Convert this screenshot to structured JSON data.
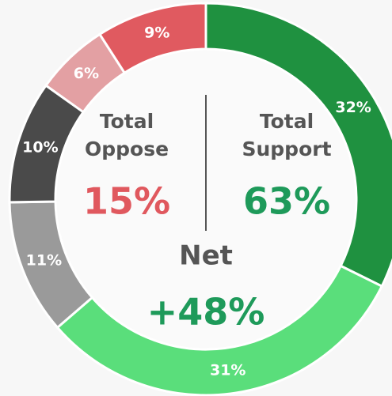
{
  "chart_data": {
    "type": "donut",
    "values": [
      32,
      31,
      11,
      10,
      6,
      9
    ],
    "value_labels": [
      "32%",
      "31%",
      "11%",
      "10%",
      "6%",
      "9%"
    ],
    "colors": [
      "#1f9140",
      "#5ade7b",
      "#9a9a9a",
      "#4a4a4a",
      "#e3a0a3",
      "#e05a60"
    ],
    "summary": [
      {
        "label": [
          "Total",
          "Oppose"
        ],
        "text": "15%",
        "color": "#e0585e"
      },
      {
        "label": [
          "Total",
          "Support"
        ],
        "text": "63%",
        "color": "#1e9a5a"
      },
      {
        "label": [
          "Net"
        ],
        "text": "+48%",
        "color": "#1e9a5a"
      }
    ]
  }
}
